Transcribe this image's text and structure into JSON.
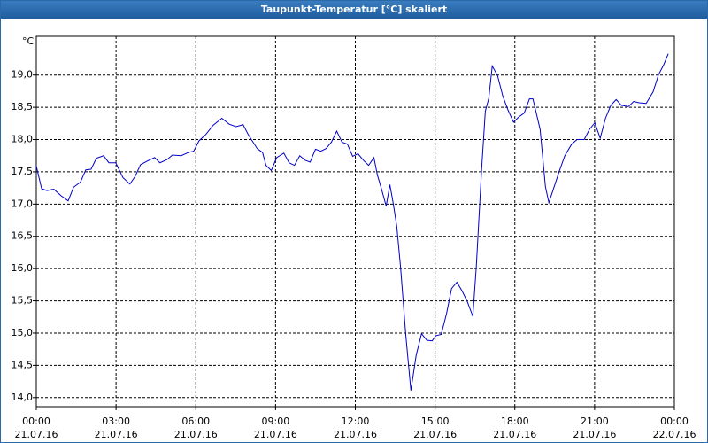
{
  "chart_data": {
    "type": "line",
    "title": "Taupunkt-Temperatur [°C] skaliert",
    "y_unit": "°C",
    "x": [
      0,
      0.2,
      0.4,
      0.66,
      0.93,
      1.2,
      1.4,
      1.66,
      1.86,
      2.06,
      2.26,
      2.53,
      2.73,
      2.99,
      3.26,
      3.52,
      3.72,
      3.92,
      4.19,
      4.45,
      4.65,
      4.92,
      5.12,
      5.45,
      5.72,
      5.92,
      6.12,
      6.38,
      6.65,
      6.98,
      7.25,
      7.51,
      7.78,
      7.98,
      8.31,
      8.51,
      8.64,
      8.84,
      9.04,
      9.31,
      9.51,
      9.71,
      9.91,
      10.11,
      10.3,
      10.5,
      10.7,
      10.9,
      11.1,
      11.3,
      11.5,
      11.7,
      11.9,
      12.1,
      12.3,
      12.5,
      12.7,
      12.83,
      12.96,
      13.16,
      13.3,
      13.43,
      13.56,
      13.7,
      13.9,
      14.09,
      14.29,
      14.49,
      14.69,
      14.89,
      15.03,
      15.23,
      15.43,
      15.62,
      15.82,
      16.02,
      16.22,
      16.42,
      16.55,
      16.75,
      16.89,
      17.02,
      17.15,
      17.35,
      17.55,
      17.75,
      17.95,
      18.15,
      18.35,
      18.55,
      18.68,
      18.95,
      19.15,
      19.28,
      19.48,
      19.68,
      19.88,
      20.14,
      20.34,
      20.61,
      20.81,
      21.01,
      21.21,
      21.41,
      21.61,
      21.81,
      22.01,
      22.27,
      22.47,
      22.67,
      22.94,
      23.2,
      23.4,
      23.6,
      23.77
    ],
    "series": [
      {
        "color": "#0000c8",
        "values": [
          17.59,
          17.24,
          17.21,
          17.23,
          17.13,
          17.05,
          17.26,
          17.34,
          17.53,
          17.54,
          17.71,
          17.75,
          17.64,
          17.64,
          17.41,
          17.31,
          17.43,
          17.61,
          17.67,
          17.72,
          17.64,
          17.69,
          17.76,
          17.75,
          17.8,
          17.82,
          17.98,
          18.08,
          18.22,
          18.33,
          18.24,
          18.2,
          18.23,
          18.07,
          17.86,
          17.8,
          17.6,
          17.52,
          17.72,
          17.79,
          17.64,
          17.6,
          17.75,
          17.68,
          17.65,
          17.85,
          17.82,
          17.86,
          17.96,
          18.13,
          17.96,
          17.93,
          17.74,
          17.78,
          17.68,
          17.6,
          17.72,
          17.45,
          17.27,
          16.97,
          17.3,
          17.0,
          16.65,
          16.03,
          14.96,
          14.11,
          14.66,
          14.99,
          14.89,
          14.88,
          14.96,
          14.98,
          15.3,
          15.69,
          15.79,
          15.65,
          15.48,
          15.26,
          16.03,
          17.54,
          18.44,
          18.64,
          19.14,
          18.99,
          18.67,
          18.45,
          18.27,
          18.35,
          18.41,
          18.63,
          18.63,
          18.16,
          17.27,
          17.02,
          17.27,
          17.52,
          17.75,
          17.93,
          18.0,
          18.0,
          18.16,
          18.26,
          18.02,
          18.33,
          18.53,
          18.62,
          18.53,
          18.51,
          18.59,
          18.57,
          18.56,
          18.74,
          19.0,
          19.16,
          19.33
        ]
      }
    ],
    "xlim": [
      0,
      24
    ],
    "ylim": [
      13.86,
      19.6
    ],
    "xticks": [
      {
        "value": 0,
        "label": [
          "00:00",
          "21.07.16"
        ]
      },
      {
        "value": 3,
        "label": [
          "03:00",
          "21.07.16"
        ]
      },
      {
        "value": 6,
        "label": [
          "06:00",
          "21.07.16"
        ]
      },
      {
        "value": 9,
        "label": [
          "09:00",
          "21.07.16"
        ]
      },
      {
        "value": 12,
        "label": [
          "12:00",
          "21.07.16"
        ]
      },
      {
        "value": 15,
        "label": [
          "15:00",
          "21.07.16"
        ]
      },
      {
        "value": 18,
        "label": [
          "18:00",
          "21.07.16"
        ]
      },
      {
        "value": 21,
        "label": [
          "21:00",
          "21.07.16"
        ]
      },
      {
        "value": 24,
        "label": [
          "00:00",
          "22.07.16"
        ]
      }
    ],
    "yticks": [
      {
        "value": 14,
        "label": "14,0"
      },
      {
        "value": 14.5,
        "label": "14,5"
      },
      {
        "value": 15,
        "label": "15,0"
      },
      {
        "value": 15.5,
        "label": "15,5"
      },
      {
        "value": 16,
        "label": "16,0"
      },
      {
        "value": 16.5,
        "label": "16,5"
      },
      {
        "value": 17,
        "label": "17,0"
      },
      {
        "value": 17.5,
        "label": "17,5"
      },
      {
        "value": 18,
        "label": "18,0"
      },
      {
        "value": 18.5,
        "label": "18,5"
      },
      {
        "value": 19,
        "label": "19,0"
      }
    ],
    "grid": true
  }
}
